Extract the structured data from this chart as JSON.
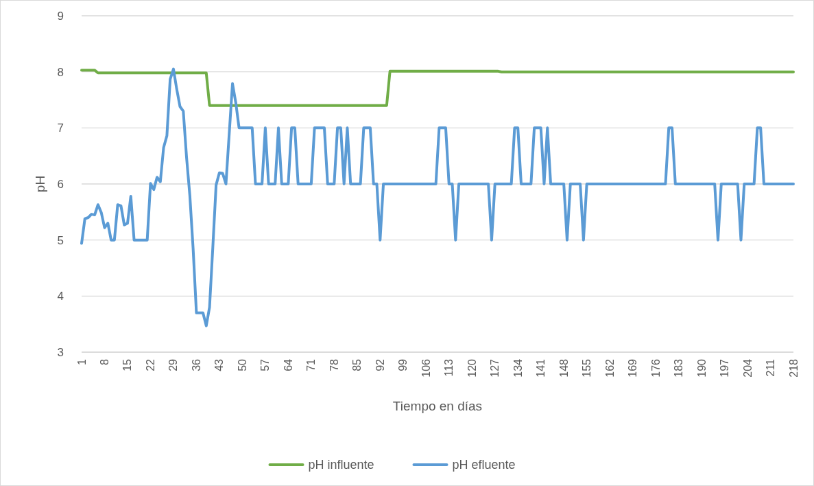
{
  "chart_data": {
    "type": "line",
    "xlabel": "Tiempo en días",
    "ylabel": "pH",
    "xlim": [
      1,
      218
    ],
    "xticks": [
      1,
      8,
      15,
      22,
      29,
      36,
      43,
      50,
      57,
      64,
      71,
      78,
      85,
      92,
      99,
      106,
      113,
      120,
      127,
      134,
      141,
      148,
      155,
      162,
      169,
      176,
      183,
      190,
      197,
      204,
      211,
      218
    ],
    "ylim": [
      3,
      9
    ],
    "yticks": [
      3,
      4,
      5,
      6,
      7,
      8,
      9
    ],
    "grid": "y",
    "legend": "bottom",
    "line_style": "solid",
    "marker": "none",
    "series": [
      {
        "name": "pH influente",
        "color": "#70ad47",
        "x": [
          1,
          5,
          6,
          39,
          40,
          94,
          95,
          128,
          129,
          218
        ],
        "values": [
          8.03,
          8.03,
          7.98,
          7.98,
          7.4,
          7.4,
          8.01,
          8.01,
          8.0,
          8.0
        ]
      },
      {
        "name": "pH efluente",
        "color": "#5b9bd5",
        "x": [
          1,
          2,
          3,
          4,
          5,
          6,
          7,
          8,
          9,
          10,
          11,
          12,
          13,
          14,
          15,
          16,
          17,
          21,
          22,
          23,
          24,
          25,
          26,
          27,
          28,
          29,
          30,
          31,
          32,
          33,
          34,
          35,
          36,
          38,
          39,
          40,
          41,
          42,
          43,
          44,
          45,
          47,
          48,
          49,
          53,
          54,
          56,
          57,
          58,
          60,
          61,
          62,
          64,
          65,
          66,
          67,
          71,
          72,
          75,
          76,
          78,
          79,
          80,
          81,
          82,
          83,
          86,
          87,
          89,
          90,
          91,
          92,
          93,
          109,
          110,
          112,
          113,
          114,
          115,
          116,
          125,
          126,
          127,
          132,
          133,
          134,
          135,
          138,
          139,
          141,
          142,
          143,
          144,
          148,
          149,
          150,
          153,
          154,
          155,
          179,
          180,
          181,
          182,
          194,
          195,
          196,
          201,
          202,
          203,
          206,
          207,
          208,
          209,
          218
        ],
        "values": [
          4.94,
          5.38,
          5.4,
          5.46,
          5.45,
          5.63,
          5.49,
          5.22,
          5.3,
          5.0,
          5.0,
          5.63,
          5.61,
          5.27,
          5.3,
          5.78,
          5.0,
          5.0,
          6.01,
          5.9,
          6.12,
          6.04,
          6.65,
          6.86,
          7.87,
          8.05,
          7.69,
          7.38,
          7.3,
          6.47,
          5.79,
          4.84,
          3.7,
          3.7,
          3.47,
          3.8,
          4.87,
          5.98,
          6.2,
          6.19,
          6.0,
          7.79,
          7.45,
          7.0,
          7.0,
          6,
          6,
          7,
          6,
          6,
          7,
          6,
          6,
          7,
          7,
          6,
          6,
          7,
          7,
          6,
          6,
          7,
          7,
          6,
          7,
          6,
          6,
          7,
          7,
          6,
          6,
          5,
          6,
          6,
          7,
          7,
          6,
          6,
          5,
          6,
          6,
          5,
          6,
          6,
          7,
          7,
          6,
          6,
          7,
          7,
          6,
          7,
          6,
          6,
          5,
          6,
          6,
          5,
          6,
          6,
          7,
          7,
          6,
          6,
          5,
          6,
          6,
          5,
          6,
          6,
          7,
          7,
          6,
          6
        ]
      }
    ]
  }
}
